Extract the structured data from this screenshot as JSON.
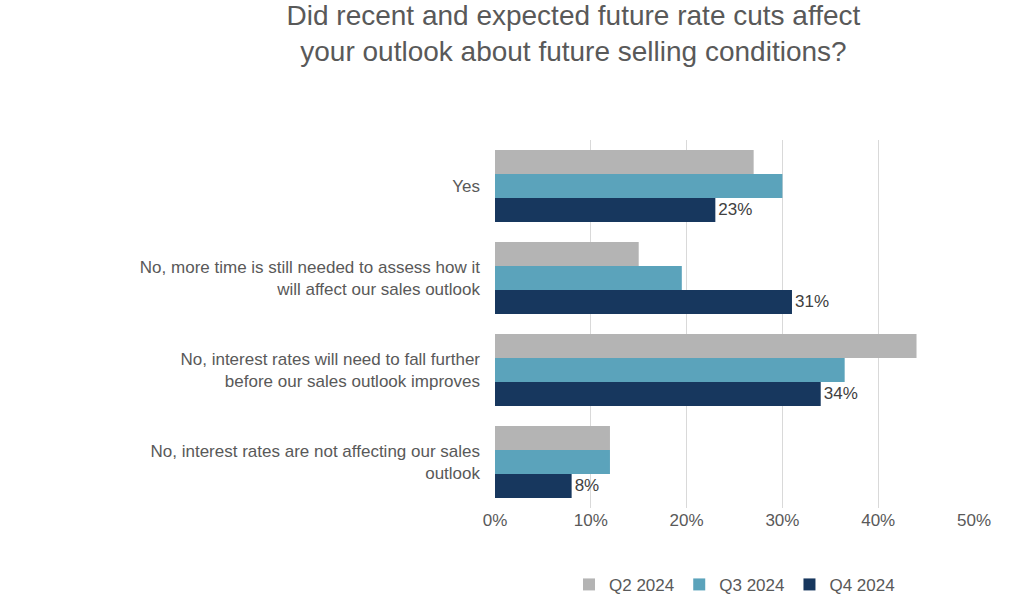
{
  "chart_data": {
    "type": "bar",
    "orientation": "horizontal",
    "title": "Did recent and expected future rate cuts affect your outlook about future selling conditions?",
    "categories": [
      "Yes",
      "No, more time is still needed to assess how it will affect our sales outlook",
      "No, interest rates will need to fall further before our sales outlook improves",
      "No, interest rates are not affecting our sales outlook"
    ],
    "series": [
      {
        "name": "Q2 2024",
        "color": "#b4b4b4",
        "values": [
          27,
          15,
          44,
          12
        ]
      },
      {
        "name": "Q3 2024",
        "color": "#5ba3bb",
        "values": [
          30,
          19.5,
          36.5,
          12
        ]
      },
      {
        "name": "Q4 2024",
        "color": "#17375e",
        "values": [
          23,
          31,
          34,
          8
        ],
        "data_labels": true,
        "value_labels": [
          "23%",
          "31%",
          "34%",
          "8%"
        ]
      }
    ],
    "xlim": [
      0,
      50
    ],
    "xticks": [
      {
        "value": 0,
        "label": "0%"
      },
      {
        "value": 10,
        "label": "10%"
      },
      {
        "value": 20,
        "label": "20%"
      },
      {
        "value": 30,
        "label": "30%"
      },
      {
        "value": 40,
        "label": "40%"
      },
      {
        "value": 50,
        "label": "50%"
      }
    ],
    "grid": true,
    "legend": "bottom"
  }
}
